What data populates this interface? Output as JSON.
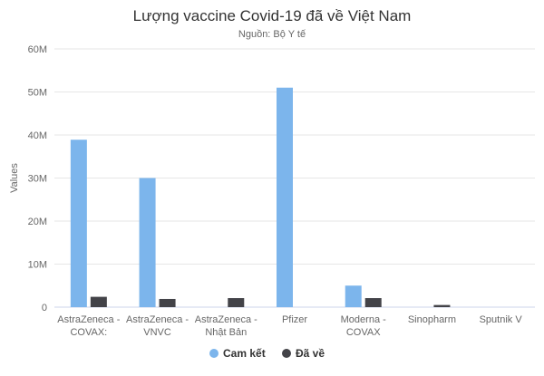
{
  "chart_data": {
    "type": "bar",
    "title": "Lượng vaccine Covid-19 đã về Việt Nam",
    "subtitle": "Nguồn: Bộ Y tế",
    "xlabel": "",
    "ylabel": "Values",
    "categories": [
      [
        "AstraZeneca -",
        "COVAX:"
      ],
      [
        "AstraZeneca -",
        "VNVC"
      ],
      [
        "AstraZeneca -",
        "Nhật Bản"
      ],
      [
        "Pfizer"
      ],
      [
        "Moderna -",
        "COVAX"
      ],
      [
        "Sinopharm"
      ],
      [
        "Sputnik V"
      ]
    ],
    "series": [
      {
        "name": "Cam kết",
        "color": "#7cb5ec",
        "values": [
          38900000,
          30000000,
          0,
          51000000,
          5000000,
          0,
          0
        ]
      },
      {
        "name": "Đã về",
        "color": "#434348",
        "values": [
          2400000,
          1900000,
          2100000,
          0,
          2100000,
          500000,
          0
        ]
      }
    ],
    "ylim": [
      0,
      60000000
    ],
    "yticks": [
      {
        "value": 0,
        "label": "0"
      },
      {
        "value": 10000000,
        "label": "10M"
      },
      {
        "value": 20000000,
        "label": "20M"
      },
      {
        "value": 30000000,
        "label": "30M"
      },
      {
        "value": 40000000,
        "label": "40M"
      },
      {
        "value": 50000000,
        "label": "50M"
      },
      {
        "value": 60000000,
        "label": "60M"
      }
    ],
    "grid": true,
    "legend_position": "bottom-center"
  }
}
